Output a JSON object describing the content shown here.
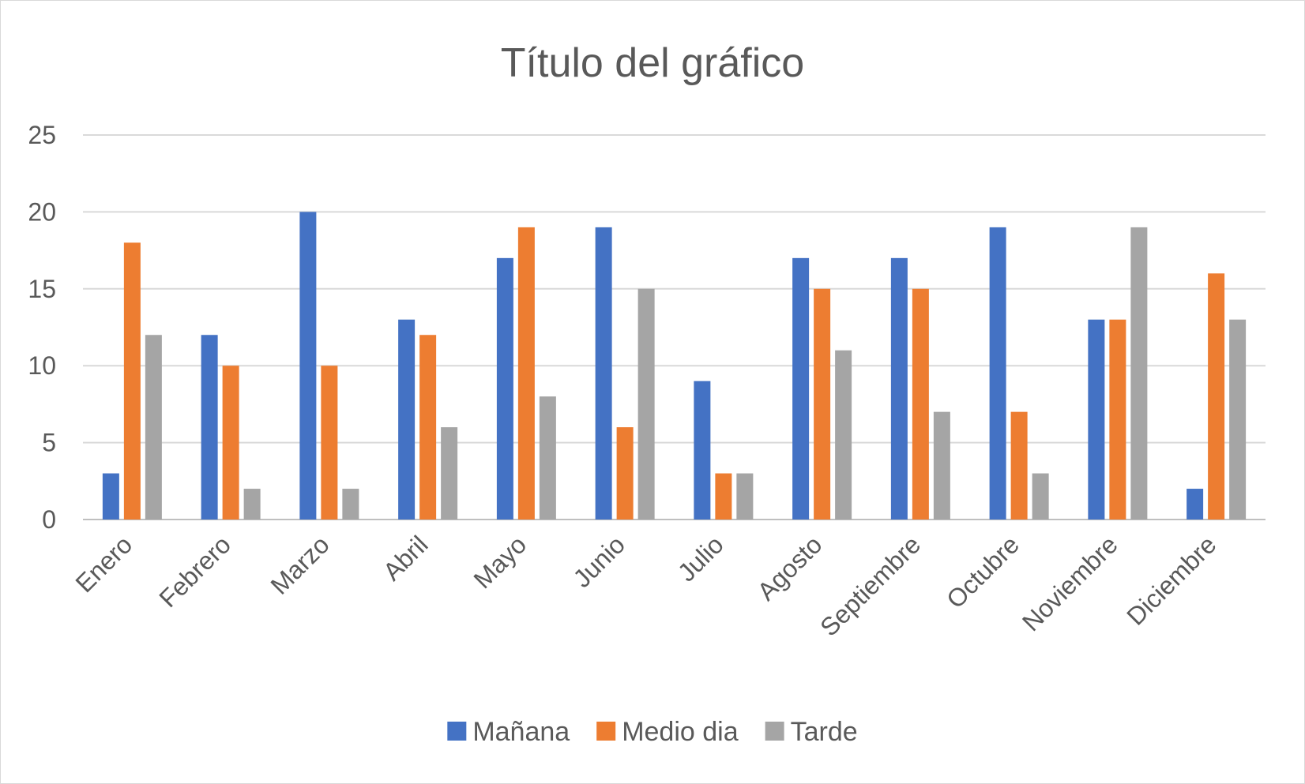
{
  "chart_data": {
    "type": "bar",
    "title": "Título del gráfico",
    "xlabel": "",
    "ylabel": "",
    "ylim": [
      0,
      25
    ],
    "yticks": [
      0,
      5,
      10,
      15,
      20,
      25
    ],
    "grid": true,
    "legend_position": "bottom",
    "categories": [
      "Enero",
      "Febrero",
      "Marzo",
      "Abril",
      "Mayo",
      "Junio",
      "Julio",
      "Agosto",
      "Septiembre",
      "Octubre",
      "Noviembre",
      "Diciembre"
    ],
    "series": [
      {
        "name": "Mañana",
        "color": "#4472C4",
        "values": [
          3,
          12,
          20,
          13,
          17,
          19,
          9,
          17,
          17,
          19,
          13,
          2
        ]
      },
      {
        "name": "Medio dia",
        "color": "#ED7D31",
        "values": [
          18,
          10,
          10,
          12,
          19,
          6,
          3,
          15,
          15,
          7,
          13,
          16
        ]
      },
      {
        "name": "Tarde",
        "color": "#A5A5A5",
        "values": [
          12,
          2,
          2,
          6,
          8,
          15,
          3,
          11,
          7,
          3,
          19,
          13
        ]
      }
    ]
  }
}
